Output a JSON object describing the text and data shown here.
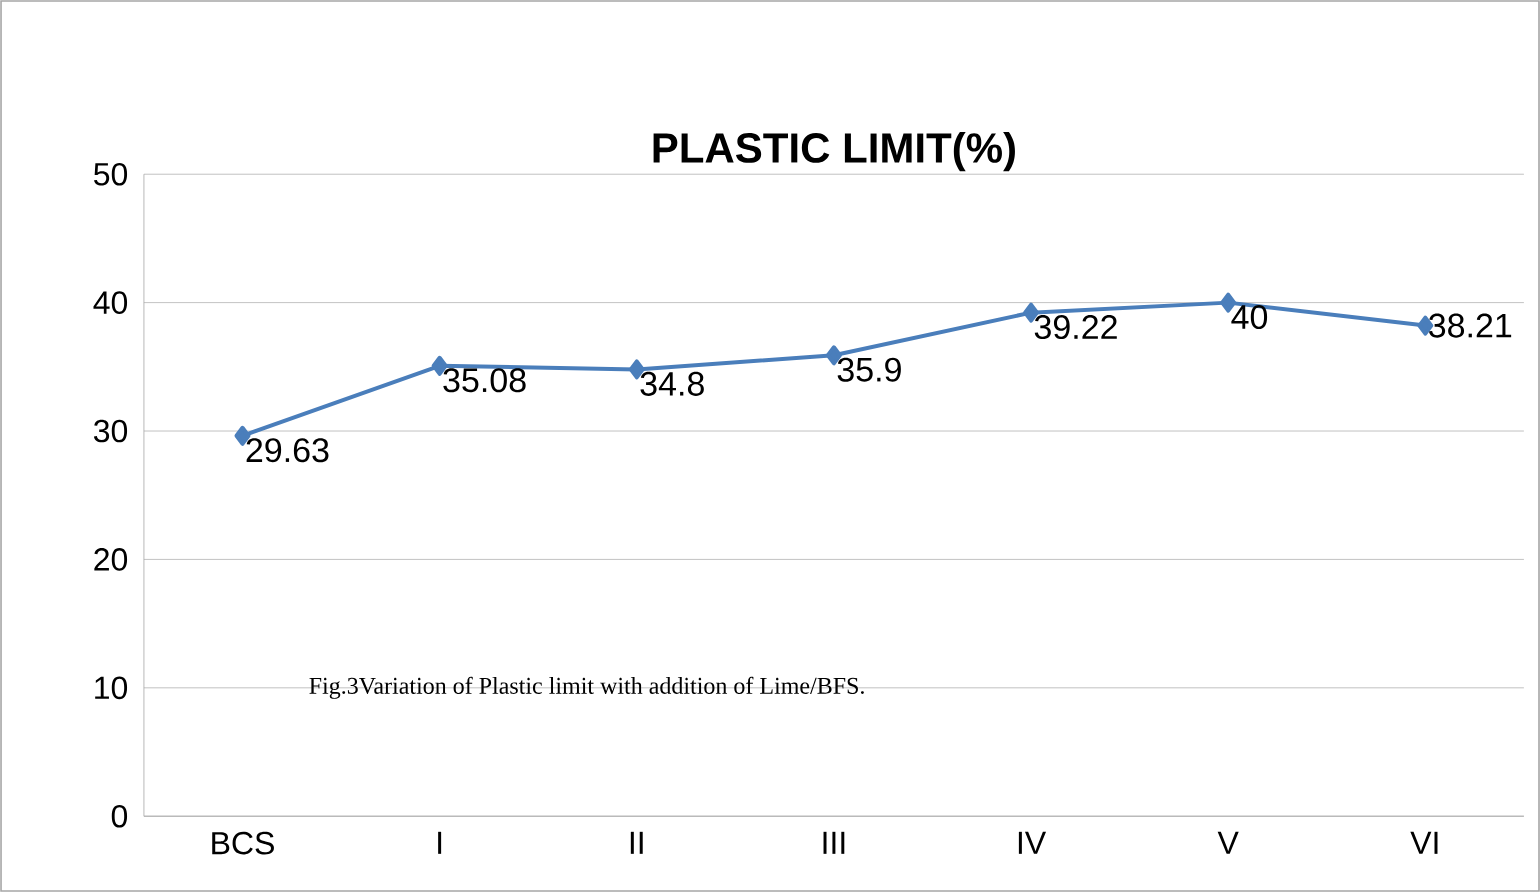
{
  "chart_data": {
    "type": "line",
    "title": "PLASTIC LIMIT(%)",
    "categories": [
      "BCS",
      "I",
      "II",
      "III",
      "IV",
      "V",
      "VI"
    ],
    "series": [
      {
        "color": "#4a7ebb",
        "values": [
          29.63,
          35.08,
          34.8,
          35.9,
          39.22,
          40,
          38.21
        ]
      }
    ],
    "ylim": [
      0,
      50
    ],
    "yticks": [
      0,
      10,
      20,
      30,
      40,
      50
    ],
    "grid": "y",
    "marker": "diamond",
    "line_style": "solid",
    "data_labels": true,
    "annotations": [
      "Fig.3Variation of Plastic limit with addition of Lime/BFS."
    ]
  }
}
